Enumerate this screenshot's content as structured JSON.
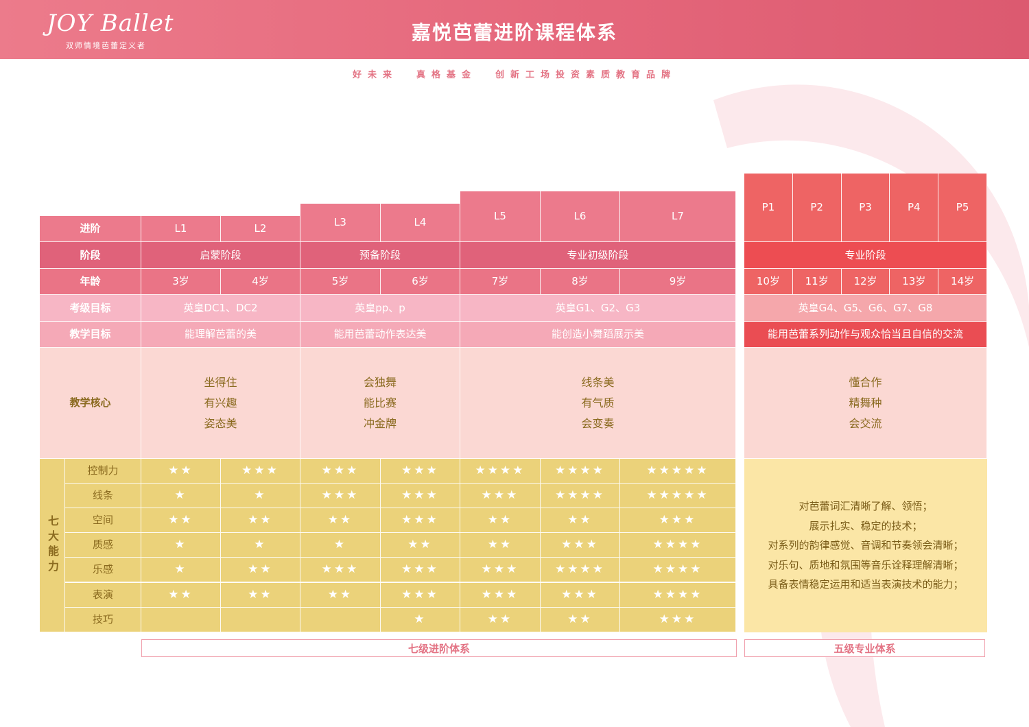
{
  "header": {
    "logo": "JOY Ballet",
    "logo_sub": "双师情境芭蕾定义者",
    "title": "嘉悦芭蕾进阶课程体系",
    "slogan": "好未来  真格基金  创新工场投资素质教育品牌"
  },
  "row_labels": {
    "level": "进阶",
    "stage": "阶段",
    "age": "年龄",
    "exam": "考级目标",
    "teach": "教学目标",
    "core": "教学核心",
    "abilities_group": "七大能力"
  },
  "levels": [
    "L1",
    "L2",
    "L3",
    "L4",
    "L5",
    "L6",
    "L7"
  ],
  "ages": [
    "3岁",
    "4岁",
    "5岁",
    "6岁",
    "7岁",
    "8岁",
    "9岁"
  ],
  "stages": [
    "启蒙阶段",
    "预备阶段",
    "专业初级阶段"
  ],
  "exams": [
    "英皇DC1、DC2",
    "英皇pp、p",
    "英皇G1、G2、G3"
  ],
  "teach_goals": [
    "能理解芭蕾的美",
    "能用芭蕾动作表达美",
    "能创造小舞蹈展示美"
  ],
  "core": [
    [
      "坐得住",
      "有兴趣",
      "姿态美"
    ],
    [
      "会独舞",
      "能比赛",
      "冲金牌"
    ],
    [
      "线条美",
      "有气质",
      "会变奏"
    ]
  ],
  "abilities": [
    {
      "name": "控制力",
      "stars": [
        2,
        3,
        3,
        3,
        4,
        4,
        5
      ]
    },
    {
      "name": "线条",
      "stars": [
        1,
        1,
        3,
        3,
        3,
        4,
        5
      ]
    },
    {
      "name": "空间",
      "stars": [
        2,
        2,
        2,
        3,
        2,
        2,
        3
      ]
    },
    {
      "name": "质感",
      "stars": [
        1,
        1,
        1,
        2,
        2,
        3,
        4
      ]
    },
    {
      "name": "乐感",
      "stars": [
        1,
        2,
        3,
        3,
        3,
        4,
        4
      ]
    },
    {
      "name": "表演",
      "stars": [
        2,
        2,
        2,
        3,
        3,
        3,
        4
      ]
    },
    {
      "name": "技巧",
      "stars": [
        0,
        0,
        0,
        1,
        2,
        2,
        3
      ]
    }
  ],
  "pro": {
    "levels": [
      "P1",
      "P2",
      "P3",
      "P4",
      "P5"
    ],
    "ages": [
      "10岁",
      "11岁",
      "12岁",
      "13岁",
      "14岁"
    ],
    "stage": "专业阶段",
    "exam": "英皇G4、G5、G6、G7、G8",
    "teach": "能用芭蕾系列动作与观众恰当且自信的交流",
    "core": [
      "懂合作",
      "精舞种",
      "会交流"
    ],
    "desc": [
      "对芭蕾词汇清晰了解、领悟；",
      "展示扎实、稳定的技术；",
      "对系列的韵律感觉、音调和节奏领会清晰；",
      "对乐句、质地和氛围等音乐诠释理解清晰；",
      "具备表情稳定运用和适当表演技术的能力；"
    ]
  },
  "footer": {
    "seven": "七级进阶体系",
    "five": "五级专业体系"
  }
}
